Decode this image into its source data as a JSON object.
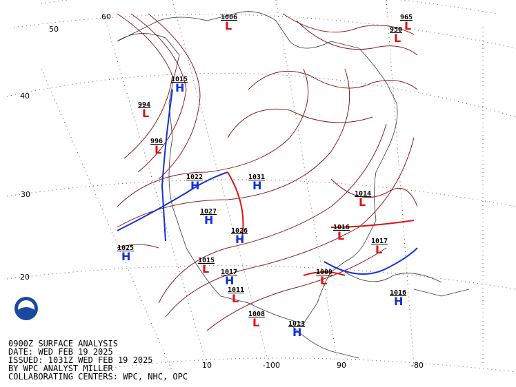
{
  "caption": [
    "0900Z SURFACE ANALYSIS",
    "DATE: WED FEB 19 2025",
    "ISSUED: 1031Z WED FEB 19 2025",
    "BY WPC ANALYST MILLER",
    "COLLABORATING CENTERS: WPC, NHC, OPC"
  ],
  "latitude_labels": [
    "60",
    "50",
    "40",
    "30",
    "20",
    "10"
  ],
  "longitude_labels": [
    "-100",
    "90",
    "-80"
  ],
  "pressure_centers": [
    {
      "kind": "L",
      "value": "1006"
    },
    {
      "kind": "L",
      "value": "965"
    },
    {
      "kind": "L",
      "value": "950"
    },
    {
      "kind": "H",
      "value": "1015"
    },
    {
      "kind": "L",
      "value": "994"
    },
    {
      "kind": "L",
      "value": "996"
    },
    {
      "kind": "H",
      "value": "1022"
    },
    {
      "kind": "H",
      "value": "1031"
    },
    {
      "kind": "H",
      "value": "1027"
    },
    {
      "kind": "H",
      "value": "1026"
    },
    {
      "kind": "H",
      "value": "1025"
    },
    {
      "kind": "L",
      "value": "1017"
    },
    {
      "kind": "L",
      "value": "1016"
    },
    {
      "kind": "L",
      "value": "1014"
    },
    {
      "kind": "L",
      "value": "1015"
    },
    {
      "kind": "H",
      "value": "1017"
    },
    {
      "kind": "L",
      "value": "1011"
    },
    {
      "kind": "L",
      "value": "1008"
    },
    {
      "kind": "H",
      "value": "1013"
    },
    {
      "kind": "L",
      "value": "1009"
    },
    {
      "kind": "H",
      "value": "1016"
    }
  ]
}
